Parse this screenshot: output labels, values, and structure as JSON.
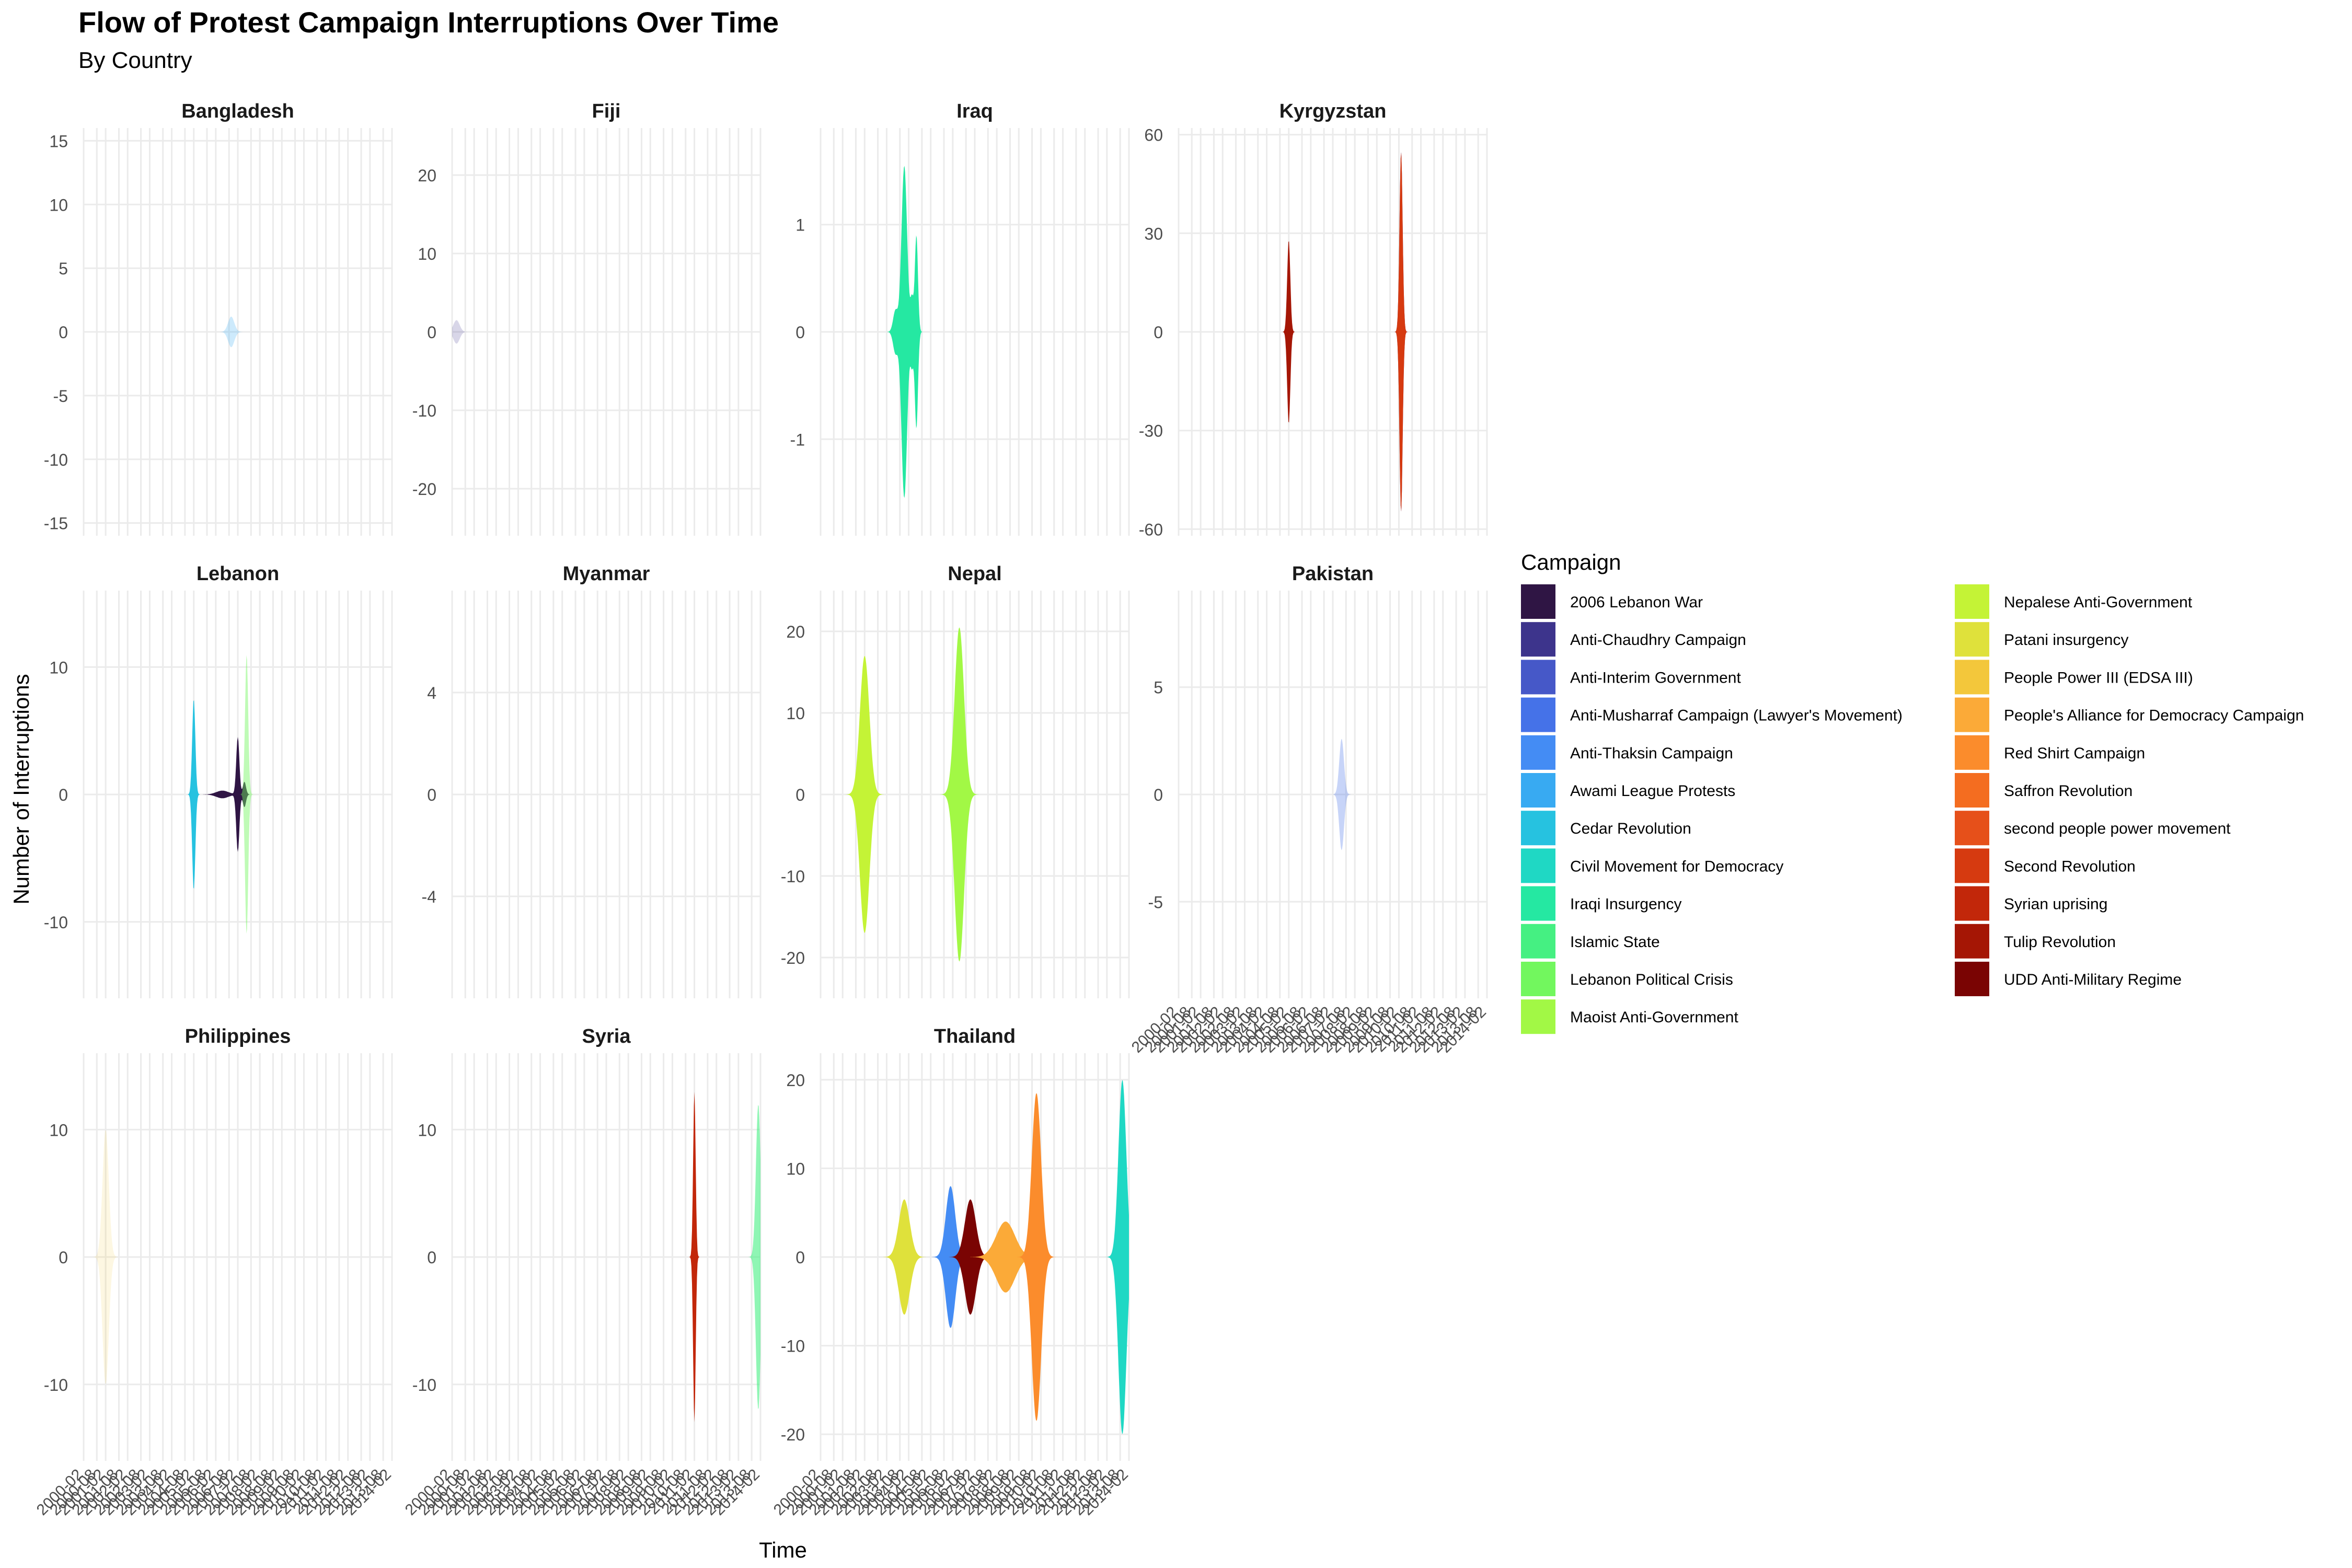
{
  "chart_data": {
    "type": "area",
    "subtype": "streamgraph-small-multiples",
    "title": "Flow of Protest Campaign Interruptions Over Time",
    "subtitle": "By Country",
    "xlabel": "Time",
    "ylabel": "Number of Interruptions",
    "legend_title": "Campaign",
    "legend_position": "right",
    "x_range": [
      2000.2,
      2014.2
    ],
    "x_ticks": [
      2000.2,
      2000.8,
      2001.2,
      2001.8,
      2002.2,
      2002.8,
      2003.2,
      2003.8,
      2004.2,
      2004.8,
      2005.2,
      2005.8,
      2006.2,
      2006.8,
      2007.2,
      2007.8,
      2008.2,
      2008.8,
      2009.2,
      2009.8,
      2010.2,
      2010.8,
      2011.2,
      2011.8,
      2012.2,
      2012.8,
      2013.2,
      2013.8,
      2014.2
    ],
    "x_tick_labels": [
      "2000-02",
      "2000-08",
      "2001-02",
      "2001-08",
      "2002-02",
      "2002-08",
      "2003-02",
      "2003-08",
      "2004-02",
      "2004-08",
      "2005-02",
      "2005-08",
      "2006-02",
      "2006-08",
      "2007-02",
      "2007-08",
      "2008-02",
      "2008-08",
      "2009-02",
      "2009-08",
      "2010-02",
      "2010-08",
      "2011-02",
      "2011-08",
      "2012-02",
      "2012-08",
      "2013-02",
      "2013-08",
      "2014-02"
    ],
    "campaigns": [
      {
        "name": "2006 Lebanon War",
        "color": "#2f1544"
      },
      {
        "name": "Anti-Chaudhry Campaign",
        "color": "#3d348c"
      },
      {
        "name": "Anti-Interim Government",
        "color": "#4658c8"
      },
      {
        "name": "Anti-Musharraf Campaign (Lawyer's Movement)",
        "color": "#4572e8"
      },
      {
        "name": "Anti-Thaksin Campaign",
        "color": "#448cf4"
      },
      {
        "name": "Awami League Protests",
        "color": "#38aaf2"
      },
      {
        "name": "Cedar Revolution",
        "color": "#26c2e0"
      },
      {
        "name": "Civil Movement for Democracy",
        "color": "#1fd8c4"
      },
      {
        "name": "Iraqi Insurgency",
        "color": "#25e8a2"
      },
      {
        "name": "Islamic State",
        "color": "#45f082"
      },
      {
        "name": "Lebanon Political Crisis",
        "color": "#72f75e"
      },
      {
        "name": "Maoist Anti-Government",
        "color": "#a2f845"
      },
      {
        "name": "Nepalese Anti-Government",
        "color": "#c4f336"
      },
      {
        "name": "Patani insurgency",
        "color": "#dfe13b"
      },
      {
        "name": "People Power III (EDSA III)",
        "color": "#f3c73b"
      },
      {
        "name": "People's Alliance for Democracy Campaign",
        "color": "#fbaa38"
      },
      {
        "name": "Red Shirt Campaign",
        "color": "#fb8c2c"
      },
      {
        "name": "Saffron Revolution",
        "color": "#f46d20"
      },
      {
        "name": "second people power movement",
        "color": "#e6501a"
      },
      {
        "name": "Second Revolution",
        "color": "#d63a10"
      },
      {
        "name": "Syrian uprising",
        "color": "#c2270a"
      },
      {
        "name": "Tulip Revolution",
        "color": "#a51605"
      },
      {
        "name": "UDD Anti-Military Regime",
        "color": "#7a0403"
      }
    ],
    "panels": [
      {
        "country": "Bangladesh",
        "ylim": [
          -16,
          16
        ],
        "y_ticks": [
          -15,
          -10,
          -5,
          0,
          5,
          10,
          15
        ],
        "y_tick_labels": [
          "-15",
          "-10",
          "-5",
          "0",
          "5",
          "10",
          "15"
        ],
        "series": [
          {
            "campaign": "Awami League Protests",
            "alpha": 0.25,
            "peaks": [
              {
                "t": 2006.9,
                "v": 1.2,
                "w": 0.2
              }
            ]
          }
        ]
      },
      {
        "country": "Fiji",
        "ylim": [
          -26,
          26
        ],
        "y_ticks": [
          -20,
          -10,
          0,
          10,
          20
        ],
        "y_tick_labels": [
          "-20",
          "-10",
          "0",
          "10",
          "20"
        ],
        "series": [
          {
            "campaign": "Anti-Chaudhry Campaign",
            "alpha": 0.2,
            "peaks": [
              {
                "t": 2000.4,
                "v": 1.5,
                "w": 0.2
              }
            ]
          }
        ]
      },
      {
        "country": "Iraq",
        "ylim": [
          -1.9,
          1.9
        ],
        "y_ticks": [
          -1,
          0,
          1
        ],
        "y_tick_labels": [
          "-1",
          "0",
          "1"
        ],
        "series": [
          {
            "campaign": "Iraqi Insurgency",
            "alpha": 1,
            "peaks": [
              {
                "t": 2003.6,
                "v": 0.2,
                "w": 0.15
              },
              {
                "t": 2004.0,
                "v": 1.55,
                "w": 0.18
              },
              {
                "t": 2004.35,
                "v": 0.3,
                "w": 0.1
              },
              {
                "t": 2004.55,
                "v": 0.9,
                "w": 0.1
              }
            ]
          }
        ]
      },
      {
        "country": "Kyrgyzstan",
        "ylim": [
          -62,
          62
        ],
        "y_ticks": [
          -60,
          -30,
          0,
          30,
          60
        ],
        "y_tick_labels": [
          "-60",
          "-30",
          "0",
          "30",
          "60"
        ],
        "series": [
          {
            "campaign": "Tulip Revolution",
            "alpha": 1,
            "peaks": [
              {
                "t": 2005.2,
                "v": 28,
                "w": 0.1
              }
            ]
          },
          {
            "campaign": "Anti-Interim Government",
            "alpha": 1,
            "peaks": [
              {
                "t": 2010.3,
                "v": 55,
                "w": 0.1
              }
            ]
          },
          {
            "campaign": "Second Revolution",
            "alpha": 1,
            "peaks": [
              {
                "t": 2010.3,
                "v": -55,
                "w": 0.1
              }
            ]
          }
        ]
      },
      {
        "country": "Lebanon",
        "ylim": [
          -16,
          16
        ],
        "y_ticks": [
          -10,
          0,
          10
        ],
        "y_tick_labels": [
          "-10",
          "0",
          "10"
        ],
        "series": [
          {
            "campaign": "Cedar Revolution",
            "alpha": 1,
            "peaks": [
              {
                "t": 2005.2,
                "v": 7.5,
                "w": 0.1
              }
            ]
          },
          {
            "campaign": "2006 Lebanon War",
            "alpha": 1,
            "peaks": [
              {
                "t": 2006.5,
                "v": 0.3,
                "w": 0.4
              },
              {
                "t": 2007.2,
                "v": 4.5,
                "w": 0.1
              },
              {
                "t": 2007.5,
                "v": 1.0,
                "w": 0.1
              }
            ]
          },
          {
            "campaign": "Lebanon Political Crisis",
            "alpha": 0.45,
            "peaks": [
              {
                "t": 2007.6,
                "v": 11,
                "w": 0.1
              }
            ]
          }
        ]
      },
      {
        "country": "Myanmar",
        "ylim": [
          -8,
          8
        ],
        "y_ticks": [
          -4,
          0,
          4
        ],
        "y_tick_labels": [
          "-4",
          "0",
          "4"
        ],
        "series": []
      },
      {
        "country": "Nepal",
        "ylim": [
          -25,
          25
        ],
        "y_ticks": [
          -20,
          -10,
          0,
          10,
          20
        ],
        "y_tick_labels": [
          "-20",
          "-10",
          "0",
          "10",
          "20"
        ],
        "series": [
          {
            "campaign": "Nepalese Anti-Government",
            "alpha": 1,
            "peaks": [
              {
                "t": 2002.2,
                "v": 17,
                "w": 0.3
              }
            ]
          },
          {
            "campaign": "Maoist Anti-Government",
            "alpha": 1,
            "peaks": [
              {
                "t": 2006.5,
                "v": 20.5,
                "w": 0.3
              }
            ]
          }
        ]
      },
      {
        "country": "Pakistan",
        "ylim": [
          -9.5,
          9.5
        ],
        "y_ticks": [
          -5,
          0,
          5
        ],
        "y_tick_labels": [
          "-5",
          "0",
          "5"
        ],
        "series": [
          {
            "campaign": "Anti-Musharraf Campaign (Lawyer's Movement)",
            "alpha": 0.3,
            "peaks": [
              {
                "t": 2007.6,
                "v": 2.6,
                "w": 0.15
              }
            ]
          }
        ]
      },
      {
        "country": "Philippines",
        "ylim": [
          -16,
          16
        ],
        "y_ticks": [
          -10,
          0,
          10
        ],
        "y_tick_labels": [
          "-10",
          "0",
          "10"
        ],
        "series": [
          {
            "campaign": "People Power III (EDSA III)",
            "alpha": 0.15,
            "peaks": [
              {
                "t": 2001.2,
                "v": 10,
                "w": 0.2
              }
            ]
          }
        ]
      },
      {
        "country": "Syria",
        "ylim": [
          -16,
          16
        ],
        "y_ticks": [
          -10,
          0,
          10
        ],
        "y_tick_labels": [
          "-10",
          "0",
          "10"
        ],
        "series": [
          {
            "campaign": "Syrian uprising",
            "alpha": 1,
            "peaks": [
              {
                "t": 2011.2,
                "v": 13,
                "w": 0.08
              }
            ]
          },
          {
            "campaign": "Islamic State",
            "alpha": 0.6,
            "peaks": [
              {
                "t": 2014.1,
                "v": 12,
                "w": 0.15
              }
            ]
          }
        ]
      },
      {
        "country": "Thailand",
        "ylim": [
          -23,
          23
        ],
        "y_ticks": [
          -20,
          -10,
          0,
          10,
          20
        ],
        "y_tick_labels": [
          "-20",
          "-10",
          "0",
          "10",
          "20"
        ],
        "series": [
          {
            "campaign": "Patani insurgency",
            "alpha": 1,
            "peaks": [
              {
                "t": 2004.0,
                "v": 6.5,
                "w": 0.35
              }
            ]
          },
          {
            "campaign": "Anti-Thaksin Campaign",
            "alpha": 1,
            "peaks": [
              {
                "t": 2006.1,
                "v": 8.0,
                "w": 0.3
              }
            ]
          },
          {
            "campaign": "UDD Anti-Military Regime",
            "alpha": 1,
            "peaks": [
              {
                "t": 2007.0,
                "v": 6.5,
                "w": 0.35
              }
            ]
          },
          {
            "campaign": "People's Alliance for Democracy Campaign",
            "alpha": 1,
            "peaks": [
              {
                "t": 2008.6,
                "v": 4.0,
                "w": 0.6
              }
            ]
          },
          {
            "campaign": "Red Shirt Campaign",
            "alpha": 1,
            "peaks": [
              {
                "t": 2010.0,
                "v": 18.5,
                "w": 0.3
              }
            ]
          },
          {
            "campaign": "Civil Movement for Democracy",
            "alpha": 1,
            "peaks": [
              {
                "t": 2013.9,
                "v": 20,
                "w": 0.25
              }
            ]
          }
        ]
      }
    ]
  }
}
